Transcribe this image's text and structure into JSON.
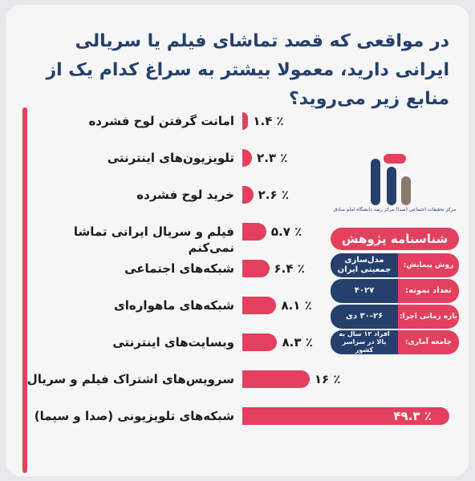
{
  "title": "در مواقعی که قصد تماشای فیلم یا سریالی ایرانی دارید، معمولا بیشتر به سراغ کدام یک از منابع زیر می‌روید؟",
  "colors": {
    "accent": "#e2405e",
    "navy": "#25406c"
  },
  "chart_data": {
    "type": "bar",
    "orientation": "horizontal",
    "categories": [
      "امانت گرفتن لوح فشرده",
      "تلویزیون‌های اینترنتی",
      "خرید لوح فشرده",
      "فیلم و سریال ایرانی تماشا نمی‌کنم",
      "شبکه‌های اجتماعی",
      "شبکه‌های ماهواره‌ای",
      "وبسایت‌های اینترنتی",
      "سرویس‌های اشتراک فیلم و سریال",
      "شبکه‌های تلویزیونی (صدا و سیما)"
    ],
    "values": [
      1.4,
      2.3,
      2.6,
      5.7,
      6.4,
      8.1,
      8.3,
      16,
      49.3
    ],
    "value_labels": [
      "۱.۴ ٪",
      "۲.۳ ٪",
      "۲.۶ ٪",
      "۵.۷ ٪",
      "۶.۴ ٪",
      "۸.۱ ٪",
      "۸.۳ ٪",
      "۱۶ ٪",
      "۴۹.۳ ٪"
    ],
    "xlim": [
      0,
      50
    ],
    "grid": false
  },
  "info": {
    "logo_caption": "مرکز تحقیقات اجتماعی (صدا) مرکز رشد دانشگاه امام صادق",
    "header": "شناسنامه پژوهش",
    "rows": [
      {
        "key": "روش پیمایش:",
        "value": "مدل‌سازی جمعیتی ایران"
      },
      {
        "key": "تعداد نمونه:",
        "value": "۴۰۲۷"
      },
      {
        "key": "بازه زمانی اجرا:",
        "value": "۳۰-۲۶ دی"
      },
      {
        "key": "جامعه آماری:",
        "value": "افراد ۱۲ سال به بالا در سراسر کشور"
      }
    ]
  }
}
